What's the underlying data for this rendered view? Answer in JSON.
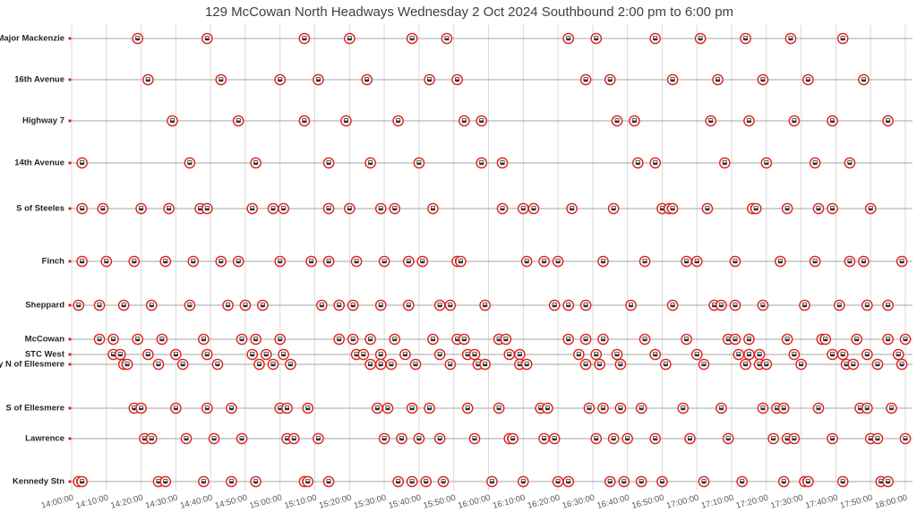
{
  "chart_data": {
    "type": "timeline",
    "title": "129 McCowan North Headways Wednesday 2 Oct 2024 Southbound 2:00 pm to 6:00 pm",
    "xlim": [
      "14:00:00",
      "18:00:00"
    ],
    "xticks": [
      "14:00:00",
      "14:10:00",
      "14:20:00",
      "14:30:00",
      "14:40:00",
      "14:50:00",
      "15:00:00",
      "15:10:00",
      "15:20:00",
      "15:30:00",
      "15:40:00",
      "15:50:00",
      "16:00:00",
      "16:10:00",
      "16:20:00",
      "16:30:00",
      "16:40:00",
      "16:50:00",
      "17:00:00",
      "17:10:00",
      "17:20:00",
      "17:30:00",
      "17:40:00",
      "17:50:00",
      "18:00:00"
    ],
    "grid": true,
    "color": "#e0201b",
    "series": [
      {
        "name": "S of Major Mackenzie",
        "x": [
          "14:19:00",
          "14:39:00",
          "15:07:00",
          "15:20:00",
          "15:38:00",
          "15:48:00",
          "16:23:00",
          "16:31:00",
          "16:48:00",
          "17:01:00",
          "17:14:00",
          "17:27:00",
          "17:42:00"
        ]
      },
      {
        "name": "16th Avenue",
        "x": [
          "14:22:00",
          "14:43:00",
          "15:00:00",
          "15:11:00",
          "15:25:00",
          "15:43:00",
          "15:51:00",
          "16:28:00",
          "16:35:00",
          "16:53:00",
          "17:06:00",
          "17:19:00",
          "17:32:00",
          "17:48:00"
        ]
      },
      {
        "name": "Highway 7",
        "x": [
          "14:29:00",
          "14:48:00",
          "15:07:00",
          "15:19:00",
          "15:34:00",
          "15:53:00",
          "15:58:00",
          "16:37:00",
          "16:42:00",
          "17:04:00",
          "17:15:00",
          "17:28:00",
          "17:39:00",
          "17:55:00"
        ]
      },
      {
        "name": "14th Avenue",
        "x": [
          "14:03:00",
          "14:34:00",
          "14:53:00",
          "15:14:00",
          "15:26:00",
          "15:40:00",
          "15:58:00",
          "16:04:00",
          "16:43:00",
          "16:48:00",
          "17:08:00",
          "17:20:00",
          "17:34:00",
          "17:44:00"
        ]
      },
      {
        "name": "S of Steeles",
        "x": [
          "14:03:00",
          "14:09:00",
          "14:20:00",
          "14:28:00",
          "14:37:00",
          "14:39:00",
          "14:52:00",
          "14:58:00",
          "15:01:00",
          "15:14:00",
          "15:20:00",
          "15:29:00",
          "15:33:00",
          "15:44:00",
          "16:04:00",
          "16:10:00",
          "16:13:00",
          "16:24:00",
          "16:36:00",
          "16:50:00",
          "16:52:00",
          "16:53:00",
          "17:03:00",
          "17:16:00",
          "17:17:00",
          "17:26:00",
          "17:35:00",
          "17:39:00",
          "17:50:00"
        ]
      },
      {
        "name": "Finch",
        "x": [
          "14:03:00",
          "14:10:00",
          "14:18:00",
          "14:27:00",
          "14:35:00",
          "14:43:00",
          "14:48:00",
          "15:00:00",
          "15:09:00",
          "15:14:00",
          "15:22:00",
          "15:30:00",
          "15:37:00",
          "15:41:00",
          "15:51:00",
          "15:52:00",
          "16:11:00",
          "16:16:00",
          "16:20:00",
          "16:33:00",
          "16:45:00",
          "16:57:00",
          "17:00:00",
          "17:11:00",
          "17:24:00",
          "17:34:00",
          "17:44:00",
          "17:48:00",
          "17:59:00"
        ]
      },
      {
        "name": "Sheppard",
        "x": [
          "14:02:00",
          "14:08:00",
          "14:15:00",
          "14:23:00",
          "14:34:00",
          "14:45:00",
          "14:50:00",
          "14:55:00",
          "15:12:00",
          "15:17:00",
          "15:21:00",
          "15:29:00",
          "15:37:00",
          "15:46:00",
          "15:49:00",
          "15:59:00",
          "16:19:00",
          "16:23:00",
          "16:28:00",
          "16:41:00",
          "16:53:00",
          "17:05:00",
          "17:07:00",
          "17:11:00",
          "17:19:00",
          "17:31:00",
          "17:41:00",
          "17:49:00",
          "17:55:00"
        ]
      },
      {
        "name": "McCowan",
        "x": [
          "14:08:00",
          "14:12:00",
          "14:19:00",
          "14:26:00",
          "14:38:00",
          "14:49:00",
          "14:53:00",
          "15:00:00",
          "15:17:00",
          "15:21:00",
          "15:26:00",
          "15:33:00",
          "15:44:00",
          "15:51:00",
          "15:53:00",
          "16:03:00",
          "16:05:00",
          "16:23:00",
          "16:28:00",
          "16:33:00",
          "16:45:00",
          "16:57:00",
          "17:09:00",
          "17:11:00",
          "17:15:00",
          "17:26:00",
          "17:36:00",
          "17:37:00",
          "17:46:00",
          "17:55:00",
          "18:00:00"
        ]
      },
      {
        "name": "STC West",
        "x": [
          "14:12:00",
          "14:14:00",
          "14:22:00",
          "14:30:00",
          "14:39:00",
          "14:52:00",
          "14:56:00",
          "15:01:00",
          "15:22:00",
          "15:24:00",
          "15:29:00",
          "15:36:00",
          "15:46:00",
          "15:54:00",
          "15:56:00",
          "16:06:00",
          "16:09:00",
          "16:26:00",
          "16:31:00",
          "16:37:00",
          "16:48:00",
          "17:00:00",
          "17:12:00",
          "17:15:00",
          "17:18:00",
          "17:28:00",
          "17:39:00",
          "17:42:00",
          "17:49:00",
          "17:58:00"
        ]
      },
      {
        "name": "Brimley N of Ellesmere",
        "x": [
          "14:15:00",
          "14:16:00",
          "14:25:00",
          "14:32:00",
          "14:42:00",
          "14:54:00",
          "14:58:00",
          "15:03:00",
          "15:26:00",
          "15:29:00",
          "15:32:00",
          "15:39:00",
          "15:49:00",
          "15:57:00",
          "15:59:00",
          "16:09:00",
          "16:11:00",
          "16:28:00",
          "16:32:00",
          "16:38:00",
          "16:51:00",
          "17:02:00",
          "17:14:00",
          "17:18:00",
          "17:20:00",
          "17:30:00",
          "17:43:00",
          "17:45:00",
          "17:52:00",
          "17:59:00"
        ]
      },
      {
        "name": "S of Ellesmere",
        "x": [
          "14:18:00",
          "14:20:00",
          "14:30:00",
          "14:39:00",
          "14:46:00",
          "15:00:00",
          "15:02:00",
          "15:08:00",
          "15:28:00",
          "15:31:00",
          "15:38:00",
          "15:43:00",
          "15:54:00",
          "16:03:00",
          "16:15:00",
          "16:17:00",
          "16:29:00",
          "16:33:00",
          "16:38:00",
          "16:44:00",
          "16:56:00",
          "17:07:00",
          "17:19:00",
          "17:23:00",
          "17:25:00",
          "17:35:00",
          "17:47:00",
          "17:49:00",
          "17:56:00"
        ]
      },
      {
        "name": "Lawrence",
        "x": [
          "14:21:00",
          "14:23:00",
          "14:33:00",
          "14:41:00",
          "14:49:00",
          "15:02:00",
          "15:04:00",
          "15:11:00",
          "15:30:00",
          "15:35:00",
          "15:40:00",
          "15:46:00",
          "15:56:00",
          "16:06:00",
          "16:07:00",
          "16:16:00",
          "16:19:00",
          "16:31:00",
          "16:36:00",
          "16:40:00",
          "16:48:00",
          "16:58:00",
          "17:09:00",
          "17:22:00",
          "17:26:00",
          "17:28:00",
          "17:39:00",
          "17:50:00",
          "17:52:00",
          "18:00:00"
        ]
      },
      {
        "name": "Kennedy Stn",
        "x": [
          "14:02:00",
          "14:03:00",
          "14:25:00",
          "14:27:00",
          "14:38:00",
          "14:46:00",
          "14:53:00",
          "15:07:00",
          "15:08:00",
          "15:14:00",
          "15:34:00",
          "15:38:00",
          "15:42:00",
          "15:47:00",
          "16:01:00",
          "16:10:00",
          "16:20:00",
          "16:23:00",
          "16:35:00",
          "16:39:00",
          "16:44:00",
          "16:50:00",
          "17:02:00",
          "17:13:00",
          "17:25:00",
          "17:31:00",
          "17:32:00",
          "17:42:00",
          "17:53:00",
          "17:55:00"
        ]
      }
    ]
  }
}
